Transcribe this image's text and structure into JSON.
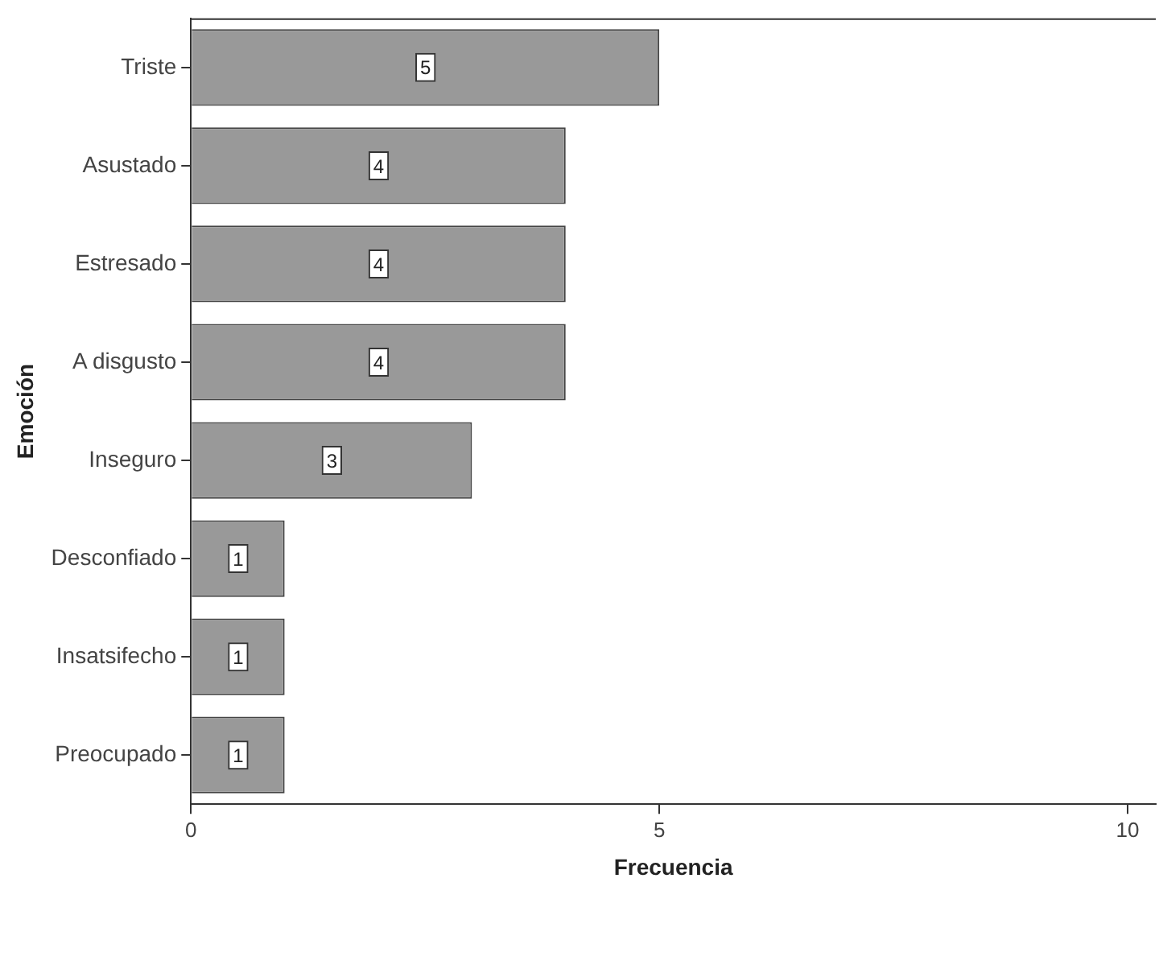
{
  "chart_data": {
    "type": "bar",
    "orientation": "horizontal",
    "xlabel": "Frecuencia",
    "ylabel": "Emoción",
    "categories": [
      "Triste",
      "Asustado",
      "Estresado",
      "A disgusto",
      "Inseguro",
      "Desconfiado",
      "Insatsifecho",
      "Preocupado"
    ],
    "values": [
      5,
      4,
      4,
      4,
      3,
      1,
      1,
      1
    ],
    "color": "#999999",
    "xlim": [
      0,
      10.3
    ],
    "xticks": [
      0,
      5,
      10
    ],
    "grid": false,
    "legend": false,
    "data_labels": true
  }
}
